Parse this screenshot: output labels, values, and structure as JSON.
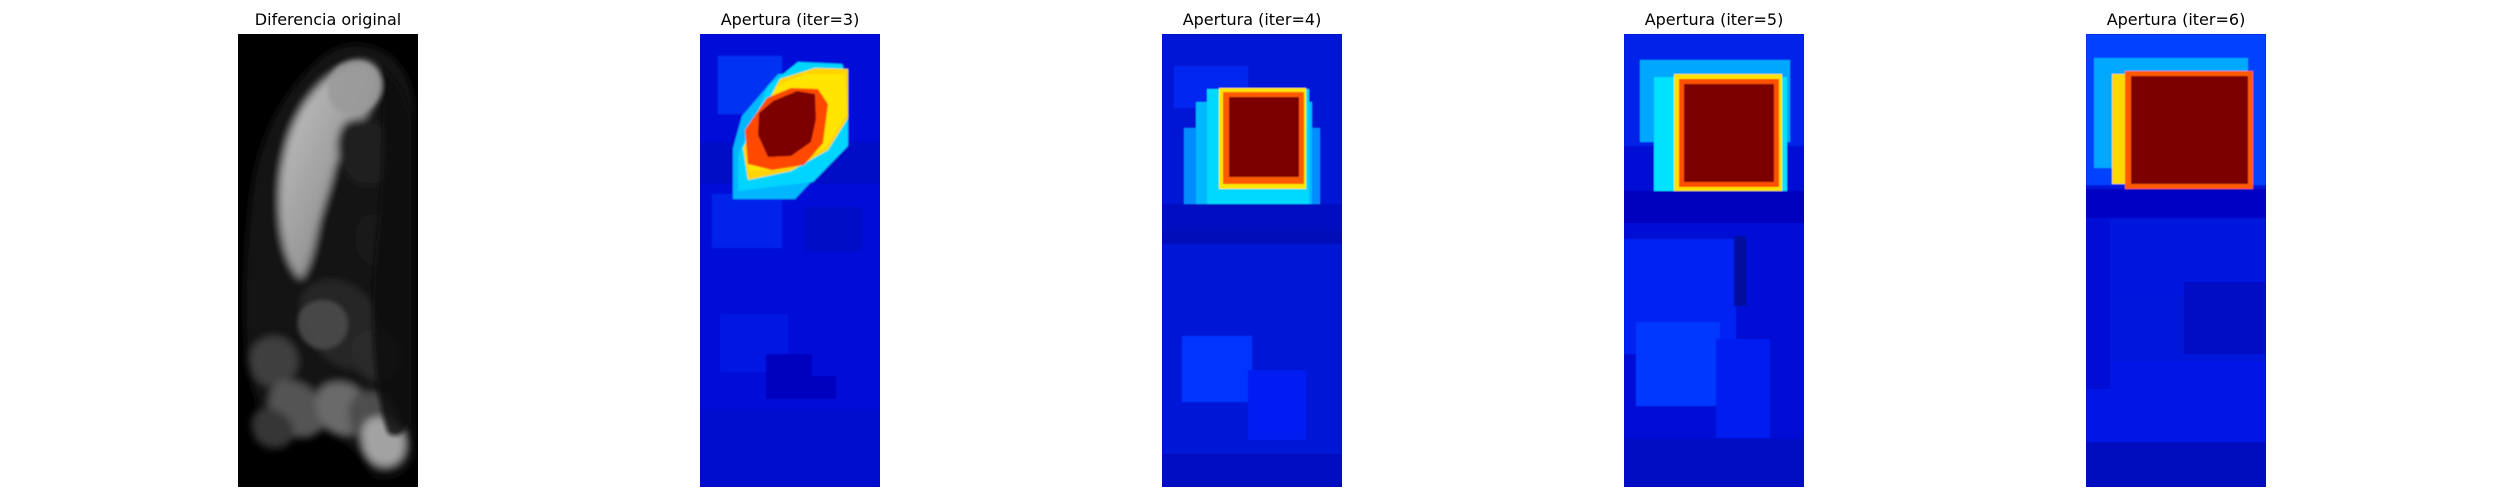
{
  "figure": {
    "panels": [
      {
        "title": "Diferencia original",
        "image_kind": "grayscale-difference",
        "colormap": "gray"
      },
      {
        "title": "Apertura (iter=3)",
        "image_kind": "opening-result",
        "colormap": "jet"
      },
      {
        "title": "Apertura (iter=4)",
        "image_kind": "opening-result",
        "colormap": "jet"
      },
      {
        "title": "Apertura (iter=5)",
        "image_kind": "opening-result",
        "colormap": "jet"
      },
      {
        "title": "Apertura (iter=6)",
        "image_kind": "opening-result",
        "colormap": "jet"
      }
    ]
  }
}
